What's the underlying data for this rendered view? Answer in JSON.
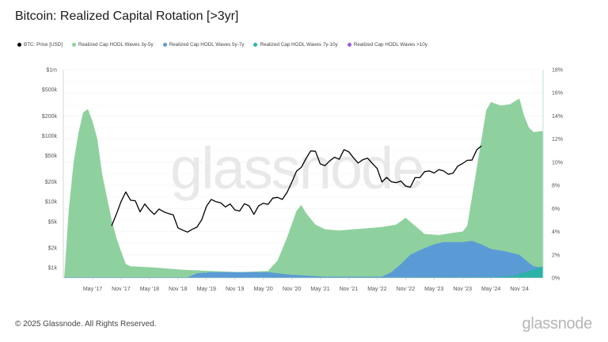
{
  "title": "Bitcoin: Realized Capital Rotation [>3yr]",
  "watermark": "glassnode",
  "footer": "© 2025 Glassnode. All Rights Reserved.",
  "logo": "glassnode",
  "legend": [
    {
      "label": "BTC: Price [USD]",
      "color": "#000000"
    },
    {
      "label": "Realized Cap HODL Waves 3y-5y",
      "color": "#8fd19e"
    },
    {
      "label": "Realized Cap HODL Waves 5y-7y",
      "color": "#5b9bd5"
    },
    {
      "label": "Realized Cap HODL Waves 7y-10y",
      "color": "#2ab3a6"
    },
    {
      "label": "Realized Cap HODL Waves >10y",
      "color": "#a259e6"
    }
  ],
  "chart_data": {
    "type": "area",
    "title": "Bitcoin: Realized Capital Rotation [>3yr]",
    "x_range": [
      "2016-11",
      "2025-04"
    ],
    "x_ticks": [
      "May '17",
      "Nov '17",
      "May '18",
      "Nov '18",
      "May '19",
      "Nov '19",
      "May '20",
      "Nov '20",
      "May '21",
      "Nov '21",
      "May '22",
      "Nov '22",
      "May '23",
      "Nov '23",
      "May '24",
      "Nov '24"
    ],
    "x_tick_dates": [
      "2017-05",
      "2017-11",
      "2018-05",
      "2018-11",
      "2019-05",
      "2019-11",
      "2020-05",
      "2020-11",
      "2021-05",
      "2021-11",
      "2022-05",
      "2022-11",
      "2023-05",
      "2023-11",
      "2024-05",
      "2024-11"
    ],
    "y_left": {
      "scale": "log",
      "range": [
        1000,
        1000000
      ],
      "ticks": [
        1000,
        2000,
        5000,
        10000,
        20000,
        50000,
        100000,
        200000,
        500000,
        1000000
      ],
      "tick_labels": [
        "$1k",
        "$2k",
        "$5k",
        "$10k",
        "$20k",
        "$50k",
        "$100k",
        "$200k",
        "$500k",
        "$1m"
      ]
    },
    "y_right": {
      "scale": "linear",
      "range": [
        0,
        18
      ],
      "ticks": [
        0,
        2,
        4,
        6,
        8,
        10,
        12,
        14,
        16,
        18
      ],
      "tick_labels": [
        "0%",
        "2%",
        "4%",
        "6%",
        "8%",
        "10%",
        "12%",
        "14%",
        "16%",
        "18%"
      ]
    },
    "grid": true,
    "legend_position": "top-left",
    "series": [
      {
        "name": "Realized Cap HODL Waves 3y-5y",
        "axis": "right",
        "color": "#8fd19e",
        "points": [
          [
            "2016-11",
            0
          ],
          [
            "2016-12",
            6
          ],
          [
            "2017-01",
            10
          ],
          [
            "2017-02",
            12.5
          ],
          [
            "2017-03",
            14.3
          ],
          [
            "2017-04",
            14.6
          ],
          [
            "2017-05",
            13.5
          ],
          [
            "2017-06",
            12
          ],
          [
            "2017-07",
            9
          ],
          [
            "2017-08",
            7
          ],
          [
            "2017-09",
            5
          ],
          [
            "2017-10",
            3.5
          ],
          [
            "2017-11",
            2.3
          ],
          [
            "2017-12",
            1.2
          ],
          [
            "2018-01",
            1.0
          ],
          [
            "2018-06",
            0.9
          ],
          [
            "2018-12",
            0.7
          ],
          [
            "2019-06",
            0.6
          ],
          [
            "2019-12",
            0.5
          ],
          [
            "2020-06",
            0.6
          ],
          [
            "2020-08",
            1.5
          ],
          [
            "2020-10",
            3.5
          ],
          [
            "2020-12",
            5.8
          ],
          [
            "2021-01",
            6.3
          ],
          [
            "2021-02",
            5.6
          ],
          [
            "2021-04",
            4.6
          ],
          [
            "2021-06",
            4.2
          ],
          [
            "2021-09",
            4.1
          ],
          [
            "2021-12",
            4.2
          ],
          [
            "2022-03",
            4.3
          ],
          [
            "2022-06",
            4.4
          ],
          [
            "2022-09",
            4.6
          ],
          [
            "2022-11",
            5.2
          ],
          [
            "2023-01",
            4.5
          ],
          [
            "2023-03",
            3.8
          ],
          [
            "2023-06",
            3.7
          ],
          [
            "2023-09",
            3.9
          ],
          [
            "2023-11",
            4.0
          ],
          [
            "2023-12",
            4.5
          ],
          [
            "2024-01",
            7
          ],
          [
            "2024-02",
            9.5
          ],
          [
            "2024-03",
            12
          ],
          [
            "2024-04",
            14.5
          ],
          [
            "2024-05",
            15.2
          ],
          [
            "2024-07",
            14.9
          ],
          [
            "2024-09",
            15.0
          ],
          [
            "2024-11",
            15.5
          ],
          [
            "2024-12",
            14
          ],
          [
            "2025-01",
            13
          ],
          [
            "2025-02",
            12.6
          ],
          [
            "2025-04",
            12.7
          ]
        ]
      },
      {
        "name": "Realized Cap HODL Waves 5y-7y",
        "axis": "right",
        "color": "#5b9bd5",
        "points": [
          [
            "2016-11",
            0.05
          ],
          [
            "2019-01",
            0.05
          ],
          [
            "2019-03",
            0.4
          ],
          [
            "2019-06",
            0.5
          ],
          [
            "2020-06",
            0.5
          ],
          [
            "2020-10",
            0.3
          ],
          [
            "2021-06",
            0.1
          ],
          [
            "2022-06",
            0.1
          ],
          [
            "2022-08",
            0.5
          ],
          [
            "2022-10",
            1.2
          ],
          [
            "2022-12",
            2.0
          ],
          [
            "2023-02",
            2.4
          ],
          [
            "2023-05",
            2.9
          ],
          [
            "2023-07",
            3.1
          ],
          [
            "2023-11",
            3.1
          ],
          [
            "2024-01",
            3.2
          ],
          [
            "2024-03",
            2.9
          ],
          [
            "2024-05",
            2.5
          ],
          [
            "2024-08",
            2.3
          ],
          [
            "2024-11",
            2.0
          ],
          [
            "2025-01",
            1.3
          ],
          [
            "2025-02",
            1.0
          ],
          [
            "2025-04",
            0.9
          ]
        ]
      },
      {
        "name": "Realized Cap HODL Waves 7y-10y",
        "axis": "right",
        "color": "#2ab3a6",
        "points": [
          [
            "2016-11",
            0
          ],
          [
            "2024-06",
            0.05
          ],
          [
            "2024-10",
            0.2
          ],
          [
            "2025-01",
            0.6
          ],
          [
            "2025-04",
            1.0
          ]
        ]
      },
      {
        "name": "Realized Cap HODL Waves >10y",
        "axis": "right",
        "color": "#a259e6",
        "points": [
          [
            "2016-11",
            0
          ],
          [
            "2025-04",
            0
          ]
        ]
      },
      {
        "name": "BTC: Price [USD]",
        "axis": "left",
        "type": "line",
        "color": "#000000",
        "points": [
          [
            "2017-09",
            4300
          ],
          [
            "2017-10",
            6400
          ],
          [
            "2017-11",
            10000
          ],
          [
            "2017-12",
            14000
          ],
          [
            "2018-01",
            10500
          ],
          [
            "2018-02",
            10300
          ],
          [
            "2018-03",
            7000
          ],
          [
            "2018-04",
            9200
          ],
          [
            "2018-05",
            7500
          ],
          [
            "2018-06",
            6400
          ],
          [
            "2018-07",
            7700
          ],
          [
            "2018-08",
            7000
          ],
          [
            "2018-09",
            6600
          ],
          [
            "2018-10",
            6300
          ],
          [
            "2018-11",
            4000
          ],
          [
            "2018-12",
            3700
          ],
          [
            "2019-01",
            3450
          ],
          [
            "2019-02",
            3800
          ],
          [
            "2019-03",
            4100
          ],
          [
            "2019-04",
            5300
          ],
          [
            "2019-05",
            8500
          ],
          [
            "2019-06",
            10800
          ],
          [
            "2019-07",
            10000
          ],
          [
            "2019-08",
            9600
          ],
          [
            "2019-09",
            8300
          ],
          [
            "2019-10",
            9200
          ],
          [
            "2019-11",
            7500
          ],
          [
            "2019-12",
            7200
          ],
          [
            "2020-01",
            9300
          ],
          [
            "2020-02",
            8600
          ],
          [
            "2020-03",
            6400
          ],
          [
            "2020-04",
            8600
          ],
          [
            "2020-05",
            9450
          ],
          [
            "2020-06",
            9100
          ],
          [
            "2020-07",
            11300
          ],
          [
            "2020-08",
            11600
          ],
          [
            "2020-09",
            10800
          ],
          [
            "2020-10",
            13800
          ],
          [
            "2020-11",
            19700
          ],
          [
            "2020-12",
            29000
          ],
          [
            "2021-01",
            33100
          ],
          [
            "2021-02",
            45000
          ],
          [
            "2021-03",
            58800
          ],
          [
            "2021-04",
            57700
          ],
          [
            "2021-05",
            37300
          ],
          [
            "2021-06",
            35000
          ],
          [
            "2021-07",
            41500
          ],
          [
            "2021-08",
            47100
          ],
          [
            "2021-09",
            43800
          ],
          [
            "2021-10",
            61300
          ],
          [
            "2021-11",
            57000
          ],
          [
            "2021-12",
            46300
          ],
          [
            "2022-01",
            38500
          ],
          [
            "2022-02",
            43200
          ],
          [
            "2022-03",
            45500
          ],
          [
            "2022-04",
            37700
          ],
          [
            "2022-05",
            31800
          ],
          [
            "2022-06",
            19800
          ],
          [
            "2022-07",
            23300
          ],
          [
            "2022-08",
            20000
          ],
          [
            "2022-09",
            19400
          ],
          [
            "2022-10",
            20500
          ],
          [
            "2022-11",
            17200
          ],
          [
            "2022-12",
            16500
          ],
          [
            "2023-01",
            23100
          ],
          [
            "2023-02",
            23100
          ],
          [
            "2023-03",
            28500
          ],
          [
            "2023-04",
            29200
          ],
          [
            "2023-05",
            27200
          ],
          [
            "2023-06",
            30500
          ],
          [
            "2023-07",
            29200
          ],
          [
            "2023-08",
            26000
          ],
          [
            "2023-09",
            27000
          ],
          [
            "2023-10",
            34500
          ],
          [
            "2023-11",
            37700
          ],
          [
            "2023-12",
            42300
          ],
          [
            "2024-01",
            42600
          ],
          [
            "2024-02",
            61000
          ],
          [
            "2024-03",
            70000
          ]
        ]
      }
    ]
  }
}
